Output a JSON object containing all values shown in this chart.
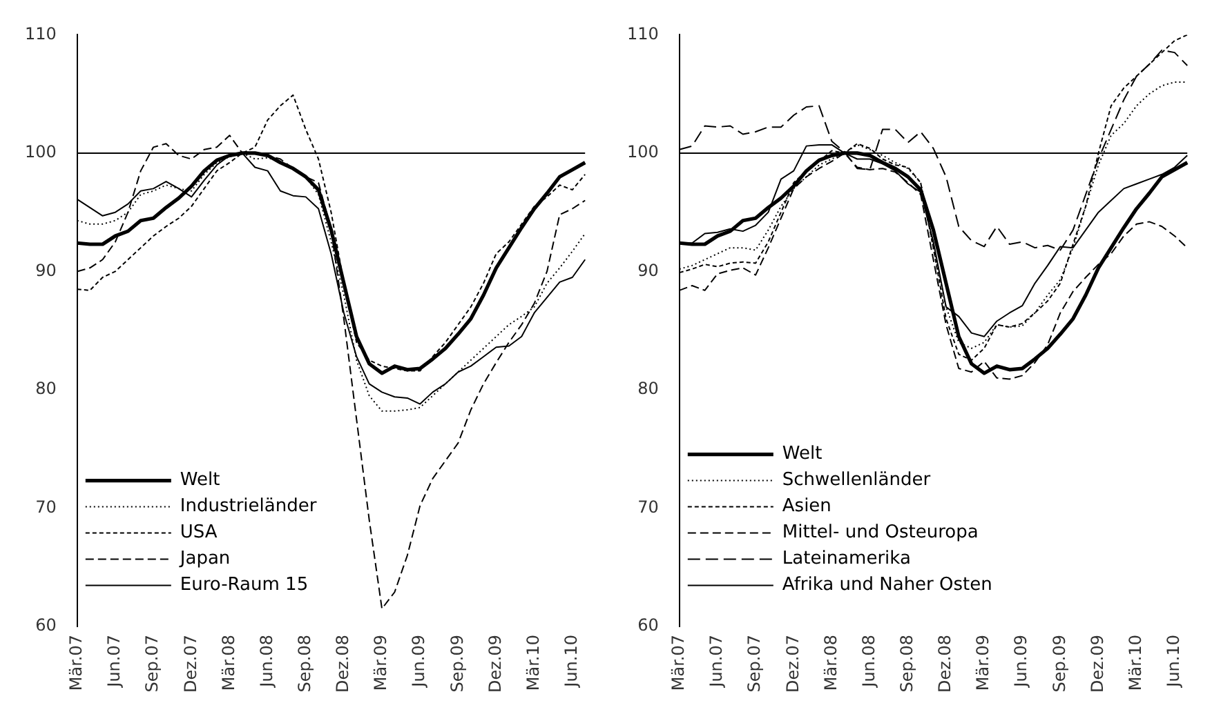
{
  "chart_data": [
    {
      "type": "line",
      "categories": [
        "Mär.07",
        null,
        null,
        "Jun.07",
        null,
        null,
        "Sep.07",
        null,
        null,
        "Dez.07",
        null,
        null,
        "Mär.08",
        null,
        null,
        "Jun.08",
        null,
        null,
        "Sep.08",
        null,
        null,
        "Dez.08",
        null,
        null,
        "Mär.09",
        null,
        null,
        "Jun.09",
        null,
        null,
        "Sep.09",
        null,
        null,
        "Dez.09",
        null,
        null,
        "Mär.10",
        null,
        null,
        "Jun.10",
        null
      ],
      "series": [
        {
          "name": "Welt",
          "color": "#000000",
          "line_style": "solid",
          "values": [
            92.4,
            92.3,
            92.3,
            93.0,
            93.4,
            94.3,
            94.5,
            95.4,
            96.2,
            97.2,
            98.5,
            99.4,
            99.8,
            100,
            100,
            99.8,
            99.2,
            98.7,
            98.0,
            96.9,
            93.5,
            89,
            84.5,
            82.2,
            81.4,
            82.0,
            81.7,
            81.8,
            82.6,
            83.5,
            84.7,
            86.0,
            88,
            90.3,
            92.0,
            93.7,
            95.3,
            96.6,
            98.0,
            98.6,
            99.2
          ]
        },
        {
          "name": "Industrieländer",
          "color": "#000000",
          "line_style": "dotted",
          "values": [
            94.3,
            94.0,
            94.0,
            94.3,
            95,
            96.5,
            96.8,
            97.3,
            97.0,
            96.8,
            98.2,
            99.2,
            99.7,
            100,
            99.5,
            99.6,
            99.3,
            98.7,
            98,
            96.5,
            92.5,
            88,
            82.5,
            79.5,
            78.2,
            78.2,
            78.3,
            78.5,
            79.5,
            80.5,
            81.5,
            82.5,
            83.5,
            84.5,
            85.5,
            86.2,
            87,
            89,
            90.3,
            91.7,
            93.2
          ]
        },
        {
          "name": "USA",
          "color": "#000000",
          "line_style": "dashed",
          "values": [
            88.5,
            88.4,
            89.5,
            90,
            91,
            92,
            93,
            93.8,
            94.5,
            95.5,
            97,
            98.5,
            99.2,
            100,
            100.5,
            102.8,
            104,
            104.9,
            102,
            99.5,
            95,
            89,
            84,
            82.5,
            82,
            81.8,
            81.6,
            81.6,
            82.8,
            84,
            85.5,
            87,
            89,
            91.5,
            92.5,
            94,
            95.5,
            96.3,
            97.3,
            96.9,
            98.2
          ]
        },
        {
          "name": "Japan",
          "color": "#000000",
          "line_style": "dashed",
          "values": [
            90,
            90.3,
            91,
            92.5,
            95,
            98.5,
            100.5,
            100.8,
            99.8,
            99.5,
            100.3,
            100.5,
            101.5,
            100,
            100,
            99.8,
            99.5,
            98.7,
            98,
            97.5,
            93.5,
            86,
            77.5,
            69,
            61.5,
            62.9,
            66,
            70.2,
            72.5,
            74,
            75.5,
            78.3,
            80.5,
            82.3,
            84,
            85.5,
            87.3,
            90,
            94.8,
            95.3,
            96
          ]
        },
        {
          "name": "Euro-Raum 15",
          "color": "#000000",
          "line_style": "solid",
          "values": [
            96.1,
            95.4,
            94.7,
            95,
            95.7,
            96.8,
            97,
            97.6,
            97,
            96.3,
            97.7,
            99,
            99.8,
            100,
            98.8,
            98.5,
            96.8,
            96.4,
            96.3,
            95.3,
            91.5,
            86.5,
            82.8,
            80.5,
            79.8,
            79.4,
            79.3,
            78.8,
            79.8,
            80.5,
            81.5,
            82,
            82.8,
            83.6,
            83.7,
            84.5,
            86.5,
            87.8,
            89.1,
            89.5,
            91
          ]
        }
      ],
      "ylim": [
        60,
        110
      ],
      "yticks": [
        60,
        70,
        80,
        90,
        100,
        110
      ],
      "grid": false,
      "legend": "bottom left",
      "ref_lines": [
        {
          "axis": "y",
          "value": 100
        }
      ]
    },
    {
      "type": "line",
      "categories": [
        "Mär.07",
        null,
        null,
        "Jun.07",
        null,
        null,
        "Sep.07",
        null,
        null,
        "Dez.07",
        null,
        null,
        "Mär.08",
        null,
        null,
        "Jun.08",
        null,
        null,
        "Sep.08",
        null,
        null,
        "Dez.08",
        null,
        null,
        "Mär.09",
        null,
        null,
        "Jun.09",
        null,
        null,
        "Sep.09",
        null,
        null,
        "Dez.09",
        null,
        null,
        "Mär.10",
        null,
        null,
        "Jun.10",
        null
      ],
      "series": [
        {
          "name": "Welt",
          "color": "#000000",
          "line_style": "solid",
          "values": [
            92.4,
            92.3,
            92.3,
            93.0,
            93.4,
            94.3,
            94.5,
            95.4,
            96.2,
            97.2,
            98.5,
            99.4,
            99.8,
            100,
            100,
            99.8,
            99.2,
            98.7,
            98.0,
            96.9,
            93.5,
            89,
            84.5,
            82.2,
            81.4,
            82.0,
            81.7,
            81.8,
            82.6,
            83.5,
            84.7,
            86.0,
            88,
            90.3,
            92.0,
            93.7,
            95.3,
            96.6,
            98.0,
            98.6,
            99.2
          ]
        },
        {
          "name": "Schwellenländer",
          "color": "#000000",
          "line_style": "dotted",
          "values": [
            90.2,
            90.5,
            91,
            91.5,
            92,
            92,
            91.8,
            93.5,
            95.5,
            97,
            98,
            99,
            99.5,
            100,
            100.7,
            100.3,
            99.8,
            99.2,
            98.7,
            97.5,
            92,
            87,
            84,
            83.5,
            84,
            85.5,
            85.3,
            85.4,
            86.5,
            88,
            89.3,
            92,
            95.5,
            99,
            101.5,
            102.5,
            104,
            105,
            105.7,
            106,
            106
          ]
        },
        {
          "name": "Asien",
          "color": "#000000",
          "line_style": "dashed",
          "values": [
            89.9,
            90.2,
            90.6,
            90.4,
            90.7,
            90.8,
            90.7,
            92.5,
            95,
            97.5,
            98.5,
            99.3,
            100.2,
            100,
            100.8,
            100.4,
            99.5,
            99,
            98.8,
            97.5,
            92,
            86,
            83,
            82.5,
            83.5,
            85.5,
            85.3,
            85.6,
            86.5,
            87.5,
            89,
            92.3,
            95.5,
            100,
            104,
            105.5,
            106.5,
            107.5,
            108.5,
            109.5,
            110
          ]
        },
        {
          "name": "Mittel- und Osteuropa",
          "color": "#000000",
          "line_style": "dashed",
          "values": [
            88.4,
            88.8,
            88.4,
            89.8,
            90.1,
            90.3,
            89.7,
            92,
            94.5,
            97,
            98,
            98.7,
            99.3,
            100,
            98.8,
            98.6,
            98.7,
            98.4,
            97.5,
            96.5,
            91,
            85.5,
            81.8,
            81.5,
            82.4,
            81.0,
            80.9,
            81.2,
            82.3,
            83.8,
            86.5,
            88.3,
            89.5,
            90.6,
            91.5,
            93,
            94,
            94.2,
            93.8,
            93,
            92
          ]
        },
        {
          "name": "Lateinamerika",
          "color": "#000000",
          "line_style": "dashed",
          "values": [
            100.3,
            100.6,
            102.3,
            102.2,
            102.3,
            101.6,
            101.8,
            102.2,
            102.2,
            103.2,
            103.9,
            104,
            101,
            100.1,
            98.7,
            98.6,
            102,
            102,
            100.9,
            101.8,
            100.4,
            98,
            93.8,
            92.6,
            92.1,
            93.8,
            92.3,
            92.5,
            92,
            92.2,
            91.8,
            93.5,
            96.5,
            99.5,
            102,
            104.5,
            106.5,
            107.5,
            108.7,
            108.5,
            107.4
          ]
        },
        {
          "name": "Afrika und Naher Osten",
          "color": "#000000",
          "line_style": "solid",
          "values": [
            92.4,
            92.4,
            93.2,
            93.3,
            93.6,
            93.4,
            93.9,
            95,
            97.8,
            98.5,
            100.6,
            100.7,
            100.7,
            100,
            99.5,
            99.5,
            99.1,
            98.5,
            97.4,
            96.7,
            92.5,
            87,
            86.2,
            84.8,
            84.5,
            85.8,
            86.5,
            87.1,
            89,
            90.5,
            92.1,
            92,
            93.5,
            95,
            96,
            97,
            97.4,
            97.8,
            98.2,
            98.8,
            99.8
          ]
        }
      ],
      "ylim": [
        60,
        110
      ],
      "yticks": [
        60,
        70,
        80,
        90,
        100,
        110
      ],
      "grid": false,
      "legend": "bottom left",
      "ref_lines": [
        {
          "axis": "y",
          "value": 100
        }
      ]
    }
  ]
}
